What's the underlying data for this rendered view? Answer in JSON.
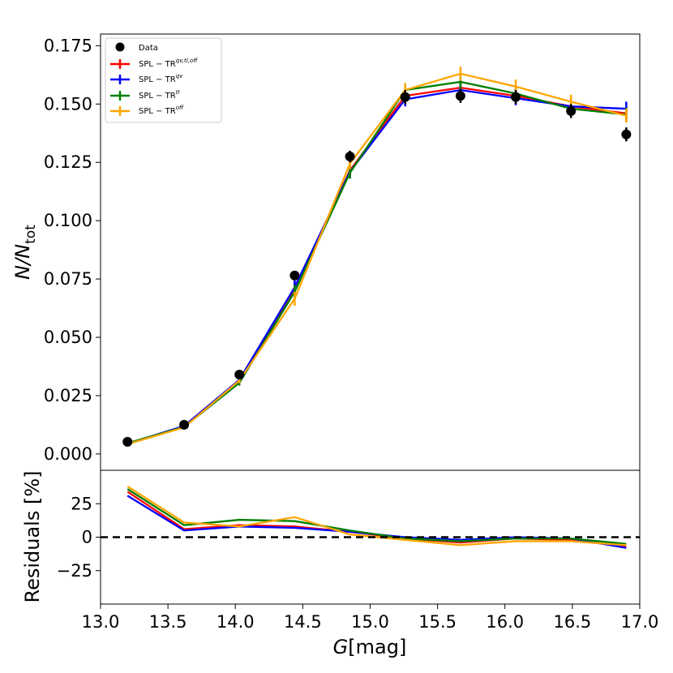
{
  "chart_data": [
    {
      "type": "line",
      "panel": "main",
      "xlabel_prefix": "G",
      "xlabel_unit": "[mag]",
      "ylabel_main": "N/N",
      "ylabel_sub": "tot",
      "xlim": [
        13.0,
        17.0
      ],
      "ylim": [
        -0.007,
        0.18
      ],
      "yticks": [
        0.0,
        0.025,
        0.05,
        0.075,
        0.1,
        0.125,
        0.15,
        0.175
      ],
      "ytick_labels": [
        "0.000",
        "0.025",
        "0.050",
        "0.075",
        "0.100",
        "0.125",
        "0.150",
        "0.175"
      ],
      "x": [
        13.2,
        13.62,
        14.03,
        14.44,
        14.85,
        15.26,
        15.67,
        16.08,
        16.49,
        16.9
      ],
      "observed": {
        "name": "Data",
        "color": "#000000",
        "values": [
          0.0052,
          0.0125,
          0.034,
          0.0765,
          0.1275,
          0.153,
          0.1535,
          0.153,
          0.147,
          0.137
        ],
        "errors": [
          0.0007,
          0.001,
          0.0012,
          0.002,
          0.0025,
          0.003,
          0.003,
          0.003,
          0.003,
          0.003
        ]
      },
      "series": [
        {
          "name": "SPL − TR",
          "superscript": "qv,tl,off",
          "color": "#ff0000",
          "values": [
            0.0045,
            0.0118,
            0.031,
            0.071,
            0.1215,
            0.1535,
            0.157,
            0.1535,
            0.149,
            0.146
          ],
          "errors": [
            0.0004,
            0.0008,
            0.0012,
            0.003,
            0.0025,
            0.003,
            0.003,
            0.003,
            0.003,
            0.003
          ]
        },
        {
          "name": "SPL − TR",
          "superscript": "qv",
          "color": "#0000ff",
          "values": [
            0.0044,
            0.012,
            0.0318,
            0.0715,
            0.121,
            0.152,
            0.156,
            0.1525,
            0.149,
            0.148
          ],
          "errors": [
            0.0004,
            0.0008,
            0.0012,
            0.003,
            0.0025,
            0.003,
            0.003,
            0.003,
            0.003,
            0.003
          ]
        },
        {
          "name": "SPL − TR",
          "superscript": "tl",
          "color": "#008000",
          "values": [
            0.0046,
            0.0116,
            0.0305,
            0.0695,
            0.1205,
            0.156,
            0.1595,
            0.1545,
            0.148,
            0.1455
          ],
          "errors": [
            0.0004,
            0.0008,
            0.0012,
            0.003,
            0.0025,
            0.003,
            0.003,
            0.003,
            0.003,
            0.003
          ]
        },
        {
          "name": "SPL − TR",
          "superscript": "off",
          "color": "#ffa500",
          "values": [
            0.0042,
            0.0114,
            0.0315,
            0.0665,
            0.1245,
            0.156,
            0.163,
            0.1575,
            0.151,
            0.145
          ],
          "errors": [
            0.0004,
            0.0008,
            0.0012,
            0.003,
            0.0025,
            0.003,
            0.003,
            0.003,
            0.003,
            0.003
          ]
        }
      ],
      "legend": {
        "placement": "top-left"
      }
    },
    {
      "type": "line",
      "panel": "residuals",
      "ylabel": "Residuals [%]",
      "xlim": [
        13.0,
        17.0
      ],
      "ylim": [
        -50,
        50
      ],
      "yticks": [
        -25,
        0,
        25
      ],
      "ytick_labels": [
        "−25",
        "0",
        "25"
      ],
      "xticks": [
        13.0,
        13.5,
        14.0,
        14.5,
        15.0,
        15.5,
        16.0,
        16.5,
        17.0
      ],
      "xtick_labels": [
        "13.0",
        "13.5",
        "14.0",
        "14.5",
        "15.0",
        "15.5",
        "16.0",
        "16.5",
        "17.0"
      ],
      "zero_line": {
        "y": 0,
        "style": "dashed",
        "color": "#000000"
      },
      "x": [
        13.2,
        13.62,
        14.03,
        14.44,
        14.85,
        15.26,
        15.67,
        16.08,
        16.49,
        16.9
      ],
      "series": [
        {
          "name": "SPL − TR qv,tl,off",
          "color": "#ff0000",
          "values": [
            34,
            6,
            9,
            8,
            4,
            -1,
            -4,
            -1,
            -2,
            -7
          ]
        },
        {
          "name": "SPL − TR qv",
          "color": "#0000ff",
          "values": [
            31,
            5,
            8,
            7,
            4,
            0,
            -2,
            0,
            -1,
            -8
          ]
        },
        {
          "name": "SPL − TR tl",
          "color": "#008000",
          "values": [
            36,
            9,
            13,
            12,
            5,
            -1,
            -3,
            -1,
            -1,
            -5
          ]
        },
        {
          "name": "SPL − TR off",
          "color": "#ffa500",
          "values": [
            38,
            11,
            8,
            15,
            2,
            -2,
            -6,
            -3,
            -3,
            -6
          ]
        }
      ]
    }
  ]
}
